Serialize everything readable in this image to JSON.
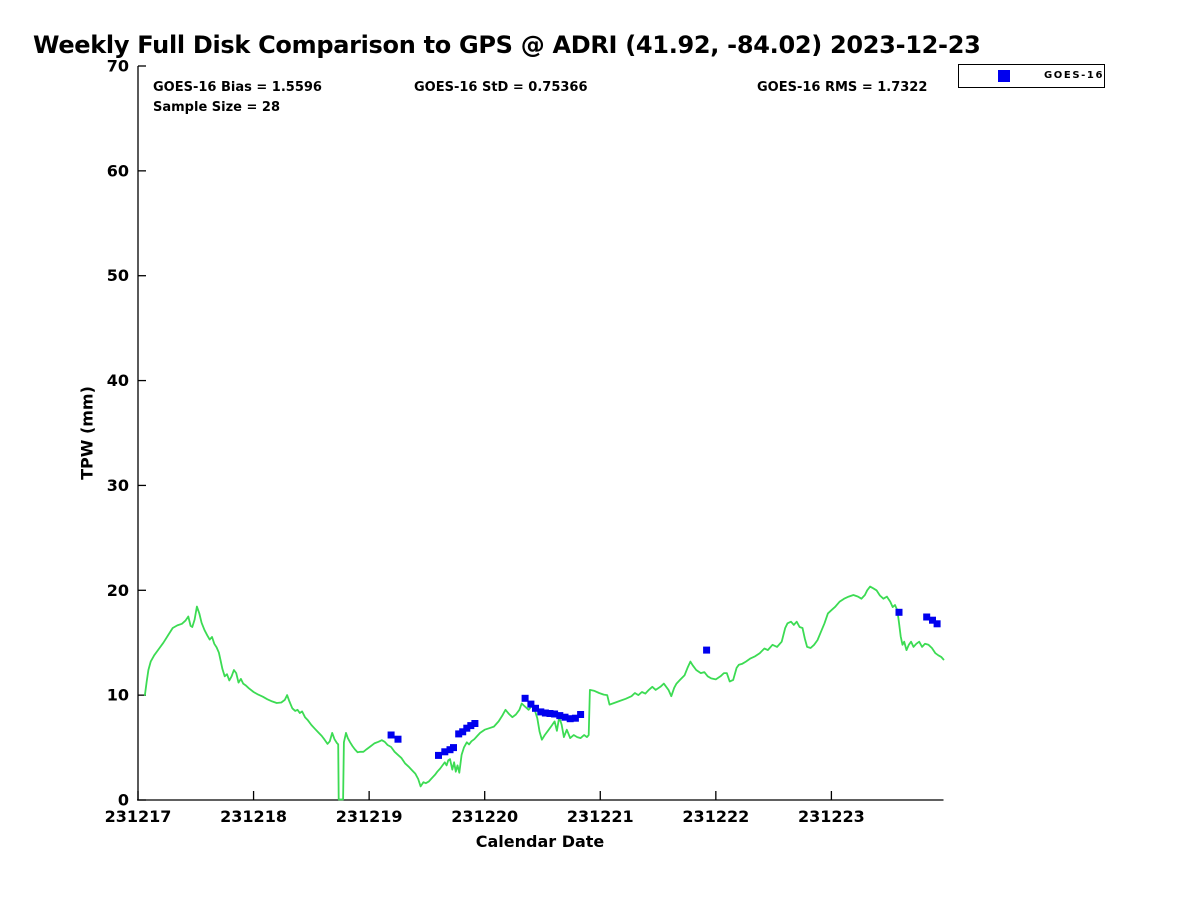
{
  "figure": {
    "title": "Weekly Full Disk Comparison to GPS @ ADRI (41.92, -84.02) 2023-12-23"
  },
  "annotations": {
    "bias": "GOES-16 Bias = 1.5596",
    "std": "GOES-16 StD = 0.75366",
    "rms": "GOES-16 RMS = 1.7322",
    "sample_size": "Sample Size = 28"
  },
  "legend": {
    "entries": [
      {
        "label": "GOES-16",
        "color": "#0000EE",
        "marker": "square"
      }
    ],
    "position": "top-right"
  },
  "colors": {
    "gps_line_green": "#3CDB53",
    "goes_marker_blue": "#0000EE",
    "axis_black": "#000000",
    "background": "#FFFFFF"
  },
  "chart_data": {
    "type": "line",
    "title": "Weekly Full Disk Comparison to GPS @ ADRI (41.92, -84.02) 2023-12-23",
    "xlabel": "Calendar Date",
    "ylabel": "TPW (mm)",
    "xlim": [
      0,
      6.97
    ],
    "ylim": [
      0,
      70
    ],
    "grid": false,
    "x_ticks": [
      {
        "pos": 0,
        "label": "231217"
      },
      {
        "pos": 1,
        "label": "231218"
      },
      {
        "pos": 2,
        "label": "231219"
      },
      {
        "pos": 3,
        "label": "231220"
      },
      {
        "pos": 4,
        "label": "231221"
      },
      {
        "pos": 5,
        "label": "231222"
      },
      {
        "pos": 6,
        "label": "231223"
      }
    ],
    "y_ticks": [
      0,
      10,
      20,
      30,
      40,
      50,
      60,
      70
    ],
    "x_unit": "days since 231217",
    "series": [
      {
        "name": "GPS",
        "type": "line",
        "color": "#3CDB53",
        "width": 1.8,
        "points": [
          [
            0.06,
            10.0
          ],
          [
            0.075,
            11.3
          ],
          [
            0.09,
            12.4
          ],
          [
            0.11,
            13.2
          ],
          [
            0.14,
            13.8
          ],
          [
            0.18,
            14.4
          ],
          [
            0.22,
            15.0
          ],
          [
            0.26,
            15.7
          ],
          [
            0.3,
            16.4
          ],
          [
            0.34,
            16.65
          ],
          [
            0.38,
            16.8
          ],
          [
            0.41,
            17.1
          ],
          [
            0.435,
            17.5
          ],
          [
            0.455,
            16.6
          ],
          [
            0.47,
            16.5
          ],
          [
            0.49,
            17.2
          ],
          [
            0.51,
            18.45
          ],
          [
            0.53,
            17.8
          ],
          [
            0.55,
            16.9
          ],
          [
            0.575,
            16.2
          ],
          [
            0.6,
            15.7
          ],
          [
            0.62,
            15.3
          ],
          [
            0.64,
            15.55
          ],
          [
            0.66,
            14.9
          ],
          [
            0.68,
            14.55
          ],
          [
            0.7,
            14.05
          ],
          [
            0.715,
            13.3
          ],
          [
            0.73,
            12.5
          ],
          [
            0.75,
            11.8
          ],
          [
            0.77,
            12.0
          ],
          [
            0.79,
            11.4
          ],
          [
            0.81,
            11.8
          ],
          [
            0.83,
            12.4
          ],
          [
            0.85,
            12.1
          ],
          [
            0.87,
            11.2
          ],
          [
            0.89,
            11.55
          ],
          [
            0.91,
            11.1
          ],
          [
            0.93,
            10.95
          ],
          [
            0.96,
            10.65
          ],
          [
            1.0,
            10.3
          ],
          [
            1.04,
            10.05
          ],
          [
            1.08,
            9.85
          ],
          [
            1.12,
            9.6
          ],
          [
            1.16,
            9.4
          ],
          [
            1.2,
            9.25
          ],
          [
            1.24,
            9.3
          ],
          [
            1.27,
            9.55
          ],
          [
            1.29,
            10.0
          ],
          [
            1.31,
            9.4
          ],
          [
            1.335,
            8.75
          ],
          [
            1.36,
            8.5
          ],
          [
            1.38,
            8.6
          ],
          [
            1.4,
            8.3
          ],
          [
            1.42,
            8.45
          ],
          [
            1.445,
            7.9
          ],
          [
            1.47,
            7.6
          ],
          [
            1.5,
            7.15
          ],
          [
            1.53,
            6.8
          ],
          [
            1.56,
            6.45
          ],
          [
            1.59,
            6.1
          ],
          [
            1.615,
            5.75
          ],
          [
            1.64,
            5.35
          ],
          [
            1.66,
            5.6
          ],
          [
            1.68,
            6.4
          ],
          [
            1.7,
            5.8
          ],
          [
            1.72,
            5.45
          ],
          [
            1.732,
            5.3
          ],
          [
            1.737,
            0.05
          ],
          [
            1.775,
            0.05
          ],
          [
            1.782,
            5.5
          ],
          [
            1.8,
            6.4
          ],
          [
            1.815,
            5.9
          ],
          [
            1.835,
            5.5
          ],
          [
            1.855,
            5.15
          ],
          [
            1.875,
            4.85
          ],
          [
            1.9,
            4.55
          ],
          [
            1.925,
            4.6
          ],
          [
            1.95,
            4.6
          ],
          [
            1.98,
            4.85
          ],
          [
            2.01,
            5.1
          ],
          [
            2.045,
            5.4
          ],
          [
            2.08,
            5.55
          ],
          [
            2.11,
            5.7
          ],
          [
            2.135,
            5.55
          ],
          [
            2.16,
            5.25
          ],
          [
            2.19,
            5.05
          ],
          [
            2.22,
            4.6
          ],
          [
            2.25,
            4.3
          ],
          [
            2.28,
            4.0
          ],
          [
            2.31,
            3.5
          ],
          [
            2.34,
            3.2
          ],
          [
            2.37,
            2.85
          ],
          [
            2.4,
            2.5
          ],
          [
            2.425,
            2.0
          ],
          [
            2.445,
            1.3
          ],
          [
            2.47,
            1.7
          ],
          [
            2.49,
            1.6
          ],
          [
            2.515,
            1.75
          ],
          [
            2.54,
            2.05
          ],
          [
            2.57,
            2.4
          ],
          [
            2.59,
            2.7
          ],
          [
            2.615,
            3.0
          ],
          [
            2.635,
            3.3
          ],
          [
            2.655,
            3.6
          ],
          [
            2.67,
            3.3
          ],
          [
            2.685,
            3.8
          ],
          [
            2.7,
            3.9
          ],
          [
            2.72,
            2.9
          ],
          [
            2.735,
            3.6
          ],
          [
            2.75,
            2.7
          ],
          [
            2.765,
            3.3
          ],
          [
            2.78,
            2.6
          ],
          [
            2.8,
            4.3
          ],
          [
            2.82,
            5.0
          ],
          [
            2.845,
            5.5
          ],
          [
            2.865,
            5.3
          ],
          [
            2.885,
            5.6
          ],
          [
            2.91,
            5.8
          ],
          [
            2.935,
            6.1
          ],
          [
            2.96,
            6.4
          ],
          [
            3.0,
            6.7
          ],
          [
            3.04,
            6.85
          ],
          [
            3.08,
            7.0
          ],
          [
            3.12,
            7.5
          ],
          [
            3.155,
            8.1
          ],
          [
            3.18,
            8.6
          ],
          [
            3.21,
            8.2
          ],
          [
            3.24,
            7.9
          ],
          [
            3.27,
            8.15
          ],
          [
            3.3,
            8.6
          ],
          [
            3.32,
            9.2
          ],
          [
            3.35,
            8.9
          ],
          [
            3.38,
            8.6
          ],
          [
            3.41,
            9.0
          ],
          [
            3.435,
            8.5
          ],
          [
            3.455,
            7.8
          ],
          [
            3.475,
            6.5
          ],
          [
            3.495,
            5.75
          ],
          [
            3.52,
            6.2
          ],
          [
            3.55,
            6.65
          ],
          [
            3.58,
            7.1
          ],
          [
            3.605,
            7.5
          ],
          [
            3.625,
            6.6
          ],
          [
            3.645,
            7.9
          ],
          [
            3.665,
            7.2
          ],
          [
            3.685,
            6.0
          ],
          [
            3.71,
            6.7
          ],
          [
            3.74,
            5.9
          ],
          [
            3.77,
            6.2
          ],
          [
            3.8,
            6.0
          ],
          [
            3.83,
            5.9
          ],
          [
            3.86,
            6.2
          ],
          [
            3.885,
            6.0
          ],
          [
            3.9,
            6.2
          ],
          [
            3.91,
            10.5
          ],
          [
            3.95,
            10.4
          ],
          [
            3.99,
            10.2
          ],
          [
            4.03,
            10.05
          ],
          [
            4.06,
            10.0
          ],
          [
            4.08,
            9.1
          ],
          [
            4.12,
            9.25
          ],
          [
            4.17,
            9.45
          ],
          [
            4.22,
            9.65
          ],
          [
            4.27,
            9.9
          ],
          [
            4.3,
            10.2
          ],
          [
            4.33,
            10.0
          ],
          [
            4.36,
            10.3
          ],
          [
            4.39,
            10.15
          ],
          [
            4.42,
            10.5
          ],
          [
            4.45,
            10.8
          ],
          [
            4.48,
            10.5
          ],
          [
            4.52,
            10.8
          ],
          [
            4.55,
            11.1
          ],
          [
            4.59,
            10.5
          ],
          [
            4.615,
            9.9
          ],
          [
            4.64,
            10.7
          ],
          [
            4.66,
            11.1
          ],
          [
            4.69,
            11.45
          ],
          [
            4.73,
            11.9
          ],
          [
            4.755,
            12.6
          ],
          [
            4.78,
            13.2
          ],
          [
            4.8,
            12.85
          ],
          [
            4.83,
            12.4
          ],
          [
            4.87,
            12.1
          ],
          [
            4.9,
            12.2
          ],
          [
            4.93,
            11.8
          ],
          [
            4.96,
            11.6
          ],
          [
            5.0,
            11.5
          ],
          [
            5.04,
            11.8
          ],
          [
            5.07,
            12.1
          ],
          [
            5.095,
            12.1
          ],
          [
            5.12,
            11.3
          ],
          [
            5.15,
            11.45
          ],
          [
            5.18,
            12.6
          ],
          [
            5.2,
            12.9
          ],
          [
            5.23,
            13.0
          ],
          [
            5.26,
            13.2
          ],
          [
            5.3,
            13.5
          ],
          [
            5.34,
            13.7
          ],
          [
            5.38,
            14.0
          ],
          [
            5.42,
            14.45
          ],
          [
            5.45,
            14.3
          ],
          [
            5.49,
            14.8
          ],
          [
            5.53,
            14.6
          ],
          [
            5.57,
            15.1
          ],
          [
            5.6,
            16.4
          ],
          [
            5.62,
            16.85
          ],
          [
            5.65,
            17.0
          ],
          [
            5.675,
            16.7
          ],
          [
            5.7,
            17.0
          ],
          [
            5.725,
            16.5
          ],
          [
            5.75,
            16.4
          ],
          [
            5.77,
            15.4
          ],
          [
            5.79,
            14.6
          ],
          [
            5.82,
            14.5
          ],
          [
            5.85,
            14.8
          ],
          [
            5.88,
            15.25
          ],
          [
            5.91,
            16.05
          ],
          [
            5.94,
            16.85
          ],
          [
            5.97,
            17.8
          ],
          [
            6.0,
            18.1
          ],
          [
            6.03,
            18.4
          ],
          [
            6.07,
            18.9
          ],
          [
            6.11,
            19.2
          ],
          [
            6.15,
            19.4
          ],
          [
            6.19,
            19.55
          ],
          [
            6.23,
            19.4
          ],
          [
            6.26,
            19.2
          ],
          [
            6.29,
            19.55
          ],
          [
            6.31,
            20.0
          ],
          [
            6.335,
            20.35
          ],
          [
            6.36,
            20.2
          ],
          [
            6.39,
            20.0
          ],
          [
            6.42,
            19.5
          ],
          [
            6.45,
            19.2
          ],
          [
            6.48,
            19.4
          ],
          [
            6.51,
            18.9
          ],
          [
            6.53,
            18.4
          ],
          [
            6.55,
            18.6
          ],
          [
            6.57,
            18.1
          ],
          [
            6.585,
            16.9
          ],
          [
            6.6,
            15.6
          ],
          [
            6.615,
            14.8
          ],
          [
            6.63,
            15.1
          ],
          [
            6.65,
            14.3
          ],
          [
            6.67,
            14.8
          ],
          [
            6.69,
            15.1
          ],
          [
            6.71,
            14.6
          ],
          [
            6.735,
            14.9
          ],
          [
            6.76,
            15.1
          ],
          [
            6.785,
            14.6
          ],
          [
            6.81,
            14.9
          ],
          [
            6.84,
            14.8
          ],
          [
            6.87,
            14.5
          ],
          [
            6.9,
            14.0
          ],
          [
            6.925,
            13.8
          ],
          [
            6.95,
            13.65
          ],
          [
            6.97,
            13.4
          ]
        ]
      },
      {
        "name": "GOES-16",
        "type": "scatter",
        "color": "#0000EE",
        "marker": "square",
        "marker_size": 7,
        "sample_size": 28,
        "points": [
          [
            2.19,
            6.2
          ],
          [
            2.25,
            5.8
          ],
          [
            2.6,
            4.25
          ],
          [
            2.655,
            4.6
          ],
          [
            2.7,
            4.8
          ],
          [
            2.73,
            5.0
          ],
          [
            2.775,
            6.3
          ],
          [
            2.81,
            6.5
          ],
          [
            2.845,
            6.85
          ],
          [
            2.88,
            7.1
          ],
          [
            2.915,
            7.3
          ],
          [
            3.35,
            9.7
          ],
          [
            3.4,
            9.15
          ],
          [
            3.44,
            8.75
          ],
          [
            3.485,
            8.4
          ],
          [
            3.525,
            8.3
          ],
          [
            3.565,
            8.25
          ],
          [
            3.605,
            8.2
          ],
          [
            3.65,
            8.05
          ],
          [
            3.695,
            7.9
          ],
          [
            3.74,
            7.75
          ],
          [
            3.785,
            7.8
          ],
          [
            3.83,
            8.15
          ],
          [
            4.92,
            14.3
          ],
          [
            6.585,
            17.9
          ],
          [
            6.825,
            17.45
          ],
          [
            6.875,
            17.15
          ],
          [
            6.915,
            16.8
          ]
        ]
      }
    ],
    "annotations": [
      "GOES-16 Bias = 1.5596",
      "GOES-16 StD = 0.75366",
      "GOES-16 RMS = 1.7322",
      "Sample Size = 28"
    ],
    "legend_position": "top-right"
  }
}
